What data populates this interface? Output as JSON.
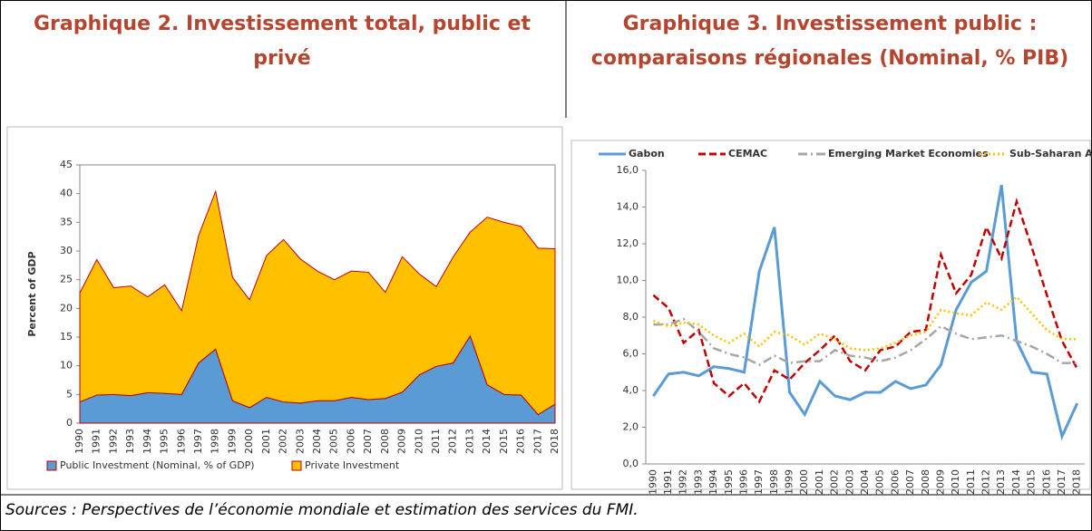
{
  "chart_data": [
    {
      "type": "stacked_area",
      "title": "Graphique 2. Investissement total, public et privé",
      "ylabel": "Percent of GDP",
      "categories": [
        "1990",
        "1991",
        "1992",
        "1993",
        "1994",
        "1995",
        "1996",
        "1997",
        "1998",
        "1999",
        "2000",
        "2001",
        "2002",
        "2003",
        "2004",
        "2005",
        "2006",
        "2007",
        "2008",
        "2009",
        "2010",
        "2011",
        "2012",
        "2013",
        "2014",
        "2015",
        "2016",
        "2017",
        "2018"
      ],
      "series": [
        {
          "name": "Public Investment (Nominal, % of GDP)",
          "color": "#5b9bd5",
          "values": [
            3.7,
            4.9,
            5.0,
            4.8,
            5.3,
            5.2,
            5.0,
            10.5,
            12.9,
            3.9,
            2.7,
            4.5,
            3.7,
            3.5,
            3.9,
            3.9,
            4.5,
            4.1,
            4.3,
            5.4,
            8.4,
            9.9,
            10.5,
            15.2,
            6.7,
            5.0,
            4.9,
            1.5,
            3.3
          ]
        },
        {
          "name": "Private Investment",
          "color": "#ffc000",
          "values": [
            19.0,
            23.6,
            18.6,
            19.1,
            16.7,
            18.9,
            14.6,
            22.2,
            27.5,
            21.5,
            18.8,
            24.7,
            28.3,
            25.1,
            22.6,
            21.1,
            22.0,
            22.2,
            18.5,
            23.6,
            17.6,
            13.9,
            18.5,
            18.1,
            29.2,
            30.0,
            29.4,
            29.0,
            27.1
          ]
        }
      ],
      "edge_color": "#c00000",
      "ylim": [
        0,
        45
      ],
      "yticks": [
        0,
        5,
        10,
        15,
        20,
        25,
        30,
        35,
        40,
        45
      ],
      "legend": "bottom"
    },
    {
      "type": "line",
      "title": "Graphique 3. Investissement public : comparaisons régionales (Nominal, % PIB)",
      "categories": [
        "1990",
        "1991",
        "1992",
        "1993",
        "1994",
        "1995",
        "1996",
        "1997",
        "1998",
        "1999",
        "2000",
        "2001",
        "2002",
        "2003",
        "2004",
        "2005",
        "2006",
        "2007",
        "2008",
        "2009",
        "2010",
        "2011",
        "2012",
        "2013",
        "2014",
        "2015",
        "2016",
        "2017",
        "2018"
      ],
      "series": [
        {
          "name": "Gabon",
          "color": "#5b9bd5",
          "dash": "solid",
          "values": [
            3.7,
            4.9,
            5.0,
            4.8,
            5.3,
            5.2,
            5.0,
            10.5,
            12.9,
            3.9,
            2.7,
            4.5,
            3.7,
            3.5,
            3.9,
            3.9,
            4.5,
            4.1,
            4.3,
            5.4,
            8.4,
            9.9,
            10.5,
            15.2,
            6.7,
            5.0,
            4.9,
            1.5,
            3.3
          ]
        },
        {
          "name": "CEMAC",
          "color": "#c00000",
          "dash": "dashed",
          "values": [
            9.2,
            8.5,
            6.6,
            7.3,
            4.4,
            3.7,
            4.4,
            3.4,
            5.1,
            4.6,
            5.5,
            6.2,
            7.0,
            5.6,
            5.1,
            6.2,
            6.4,
            7.2,
            7.3,
            11.4,
            9.3,
            10.3,
            12.9,
            11.2,
            14.3,
            11.8,
            9.2,
            6.7,
            5.2
          ]
        },
        {
          "name": "Emerging Market Economies",
          "color": "#a6a6a6",
          "dash": "dashdot",
          "values": [
            7.6,
            7.6,
            7.9,
            7.2,
            6.3,
            6.0,
            5.8,
            5.4,
            5.9,
            5.5,
            5.6,
            5.6,
            6.2,
            5.9,
            5.8,
            5.6,
            5.8,
            6.2,
            6.8,
            7.5,
            7.1,
            6.8,
            6.9,
            7.0,
            6.7,
            6.4,
            6.0,
            5.5,
            5.5
          ]
        },
        {
          "name": "Sub-Saharan Africa",
          "color": "#ffc000",
          "dash": "dotted",
          "values": [
            7.8,
            7.5,
            7.7,
            7.6,
            7.0,
            6.6,
            7.1,
            6.4,
            7.2,
            7.0,
            6.5,
            7.1,
            6.8,
            6.3,
            6.2,
            6.3,
            6.6,
            7.0,
            7.2,
            8.4,
            8.2,
            8.1,
            8.8,
            8.4,
            9.1,
            8.2,
            7.3,
            6.8,
            6.8
          ]
        }
      ],
      "ylim": [
        0,
        16
      ],
      "yticks": [
        {
          "value": 0,
          "label": "0,0"
        },
        {
          "value": 2,
          "label": "2,0"
        },
        {
          "value": 4,
          "label": "4,0"
        },
        {
          "value": 6,
          "label": "6,0"
        },
        {
          "value": 8,
          "label": "8,0"
        },
        {
          "value": 10,
          "label": "10,0"
        },
        {
          "value": 12,
          "label": "12,0"
        },
        {
          "value": 14,
          "label": "14,0"
        },
        {
          "value": 16,
          "label": "16,0"
        }
      ],
      "legend": "top"
    }
  ],
  "sources": "Sources : Perspectives de l’économie mondiale et estimation des services du FMI."
}
